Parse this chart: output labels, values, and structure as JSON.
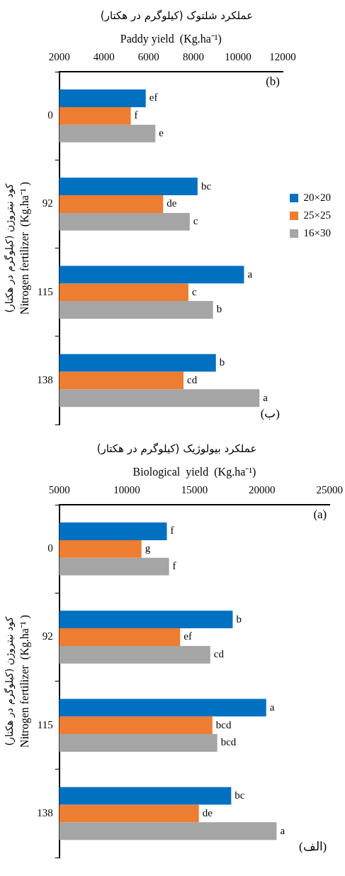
{
  "chart_data": [
    {
      "type": "bar",
      "orientation": "horizontal",
      "title": "عملکرد شلتوک (کیلوگرم در هکتار)",
      "xlabel": "Paddy yield  (Kg.ha⁻¹)",
      "ylabel": "Nitrogen fertilizer  (Kg.ha⁻¹ )",
      "categories": [
        "0",
        "92",
        "115",
        "138"
      ],
      "xlim": [
        2000,
        12000
      ],
      "xticks": [
        2000,
        4000,
        6000,
        8000,
        10000,
        12000
      ],
      "grid": false,
      "legend": "right",
      "annotations": [
        "(b)",
        "(ب)",
        "کود نیتروژن (کیلوگرم در هکتار)"
      ],
      "series": [
        {
          "name": "20×20",
          "color": "#0070c0",
          "values": [
            5870,
            8190,
            10270,
            9010
          ],
          "value_labels": [
            "ef",
            "bc",
            "a",
            "b"
          ]
        },
        {
          "name": "25×25",
          "color": "#ed7d31",
          "values": [
            5200,
            6650,
            7780,
            7560
          ],
          "value_labels": [
            "f",
            "de",
            "c",
            "cd"
          ]
        },
        {
          "name": "16×30",
          "color": "#a5a5a5",
          "values": [
            6300,
            7840,
            8880,
            10960
          ],
          "value_labels": [
            "e",
            "c",
            "b",
            "a"
          ]
        }
      ]
    },
    {
      "type": "bar",
      "orientation": "horizontal",
      "title": "عملکرد بیولوژیک (کیلوگرم در هکتار)",
      "xlabel": "Biological  yield  (Kg.ha⁻¹)",
      "ylabel": "Nitrogen fertilizer  (Kg.ha⁻¹ )",
      "categories": [
        "0",
        "92",
        "115",
        "138"
      ],
      "xlim": [
        5000,
        25000
      ],
      "xticks": [
        5000,
        10000,
        15000,
        20000,
        25000
      ],
      "grid": false,
      "annotations": [
        "(a)",
        "(الف)",
        "کود نیتروژن (کیلوگرم در هکتار)"
      ],
      "series": [
        {
          "color": "#0070c0",
          "values": [
            12960,
            17830,
            20310,
            17720
          ],
          "value_labels": [
            "f",
            "b",
            "a",
            "bc"
          ]
        },
        {
          "color": "#ed7d31",
          "values": [
            11080,
            13940,
            16330,
            15330
          ],
          "value_labels": [
            "g",
            "ef",
            "bcd",
            "de"
          ]
        },
        {
          "color": "#a5a5a5",
          "values": [
            13120,
            16170,
            16690,
            21080
          ],
          "value_labels": [
            "f",
            "cd",
            "bcd",
            "a"
          ]
        }
      ]
    }
  ]
}
